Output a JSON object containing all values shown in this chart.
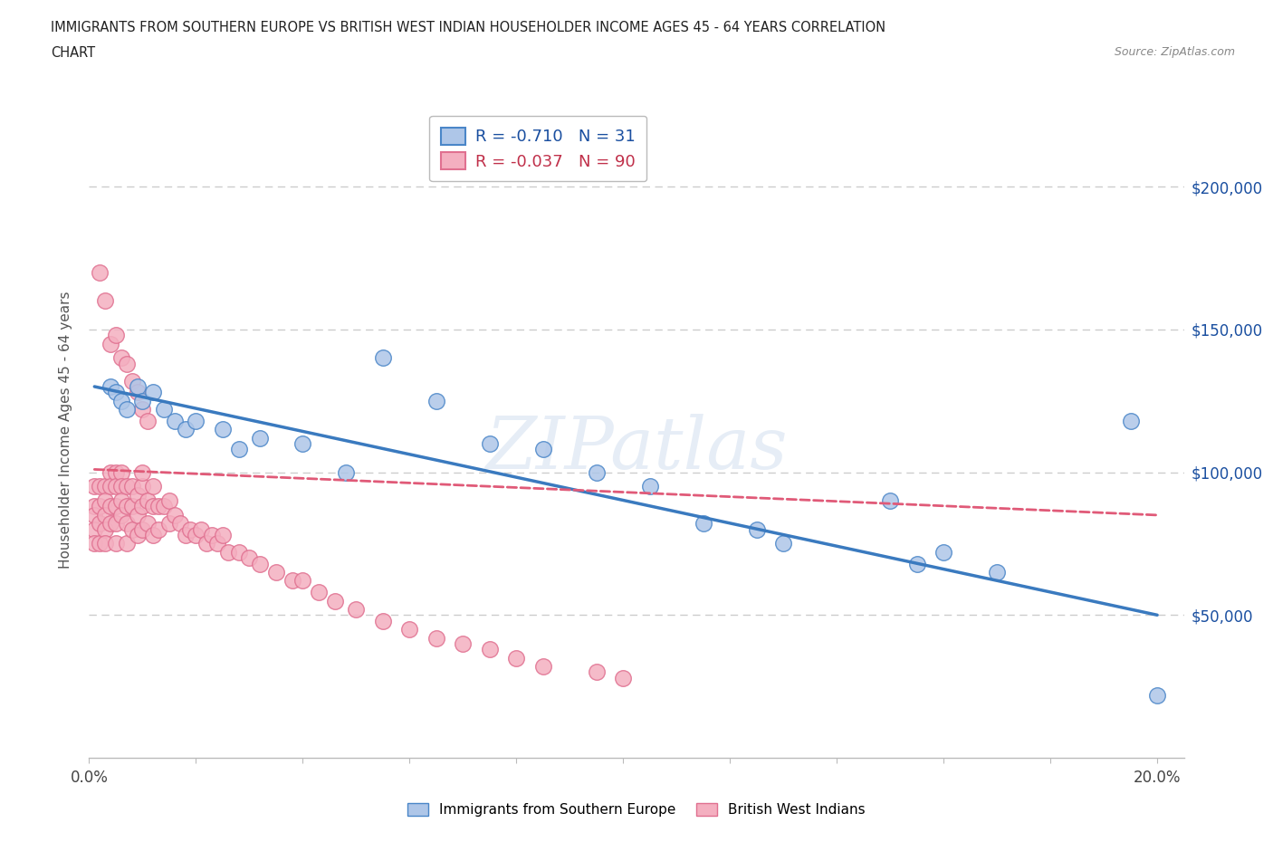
{
  "title_line1": "IMMIGRANTS FROM SOUTHERN EUROPE VS BRITISH WEST INDIAN HOUSEHOLDER INCOME AGES 45 - 64 YEARS CORRELATION",
  "title_line2": "CHART",
  "source": "Source: ZipAtlas.com",
  "ylabel": "Householder Income Ages 45 - 64 years",
  "xlim": [
    0.0,
    0.205
  ],
  "ylim": [
    0,
    230000
  ],
  "xticks": [
    0.0,
    0.02,
    0.04,
    0.06,
    0.08,
    0.1,
    0.12,
    0.14,
    0.16,
    0.18,
    0.2
  ],
  "yticks": [
    0,
    50000,
    100000,
    150000,
    200000
  ],
  "color_blue": "#aec6e8",
  "color_blue_edge": "#4a86c8",
  "color_blue_line": "#3a7abf",
  "color_pink": "#f4afc0",
  "color_pink_edge": "#e07090",
  "color_pink_line": "#e05a78",
  "color_blue_label": "#1a4fa0",
  "color_pink_label": "#c0304a",
  "R_blue": -0.71,
  "N_blue": 31,
  "R_pink": -0.037,
  "N_pink": 90,
  "legend_label_blue": "Immigrants from Southern Europe",
  "legend_label_pink": "British West Indians",
  "watermark": "ZIPatlas",
  "blue_scatter_x": [
    0.004,
    0.005,
    0.006,
    0.007,
    0.009,
    0.01,
    0.012,
    0.014,
    0.016,
    0.018,
    0.02,
    0.025,
    0.028,
    0.032,
    0.04,
    0.048,
    0.055,
    0.065,
    0.075,
    0.085,
    0.095,
    0.105,
    0.115,
    0.125,
    0.13,
    0.15,
    0.155,
    0.16,
    0.17,
    0.195,
    0.2
  ],
  "blue_scatter_y": [
    130000,
    128000,
    125000,
    122000,
    130000,
    125000,
    128000,
    122000,
    118000,
    115000,
    118000,
    115000,
    108000,
    112000,
    110000,
    100000,
    140000,
    125000,
    110000,
    108000,
    100000,
    95000,
    82000,
    80000,
    75000,
    90000,
    68000,
    72000,
    65000,
    118000,
    22000
  ],
  "pink_scatter_x": [
    0.001,
    0.001,
    0.001,
    0.001,
    0.001,
    0.002,
    0.002,
    0.002,
    0.002,
    0.003,
    0.003,
    0.003,
    0.003,
    0.003,
    0.004,
    0.004,
    0.004,
    0.004,
    0.005,
    0.005,
    0.005,
    0.005,
    0.005,
    0.006,
    0.006,
    0.006,
    0.006,
    0.007,
    0.007,
    0.007,
    0.007,
    0.008,
    0.008,
    0.008,
    0.009,
    0.009,
    0.009,
    0.01,
    0.01,
    0.01,
    0.011,
    0.011,
    0.012,
    0.012,
    0.012,
    0.013,
    0.013,
    0.014,
    0.015,
    0.015,
    0.016,
    0.017,
    0.018,
    0.019,
    0.02,
    0.021,
    0.022,
    0.023,
    0.024,
    0.025,
    0.026,
    0.028,
    0.03,
    0.032,
    0.035,
    0.038,
    0.04,
    0.043,
    0.046,
    0.05,
    0.055,
    0.06,
    0.065,
    0.07,
    0.075,
    0.08,
    0.085,
    0.095,
    0.1,
    0.01,
    0.002,
    0.003,
    0.004,
    0.005,
    0.006,
    0.007,
    0.008,
    0.009,
    0.01,
    0.011
  ],
  "pink_scatter_y": [
    95000,
    88000,
    85000,
    80000,
    75000,
    95000,
    88000,
    82000,
    75000,
    95000,
    90000,
    85000,
    80000,
    75000,
    100000,
    95000,
    88000,
    82000,
    100000,
    95000,
    88000,
    82000,
    75000,
    100000,
    95000,
    90000,
    85000,
    95000,
    88000,
    82000,
    75000,
    95000,
    88000,
    80000,
    92000,
    85000,
    78000,
    95000,
    88000,
    80000,
    90000,
    82000,
    95000,
    88000,
    78000,
    88000,
    80000,
    88000,
    90000,
    82000,
    85000,
    82000,
    78000,
    80000,
    78000,
    80000,
    75000,
    78000,
    75000,
    78000,
    72000,
    72000,
    70000,
    68000,
    65000,
    62000,
    62000,
    58000,
    55000,
    52000,
    48000,
    45000,
    42000,
    40000,
    38000,
    35000,
    32000,
    30000,
    28000,
    100000,
    170000,
    160000,
    145000,
    148000,
    140000,
    138000,
    132000,
    128000,
    122000,
    118000
  ],
  "dashed_line_color": "#cccccc",
  "blue_line_x": [
    0.001,
    0.2
  ],
  "blue_line_y": [
    130000,
    50000
  ],
  "pink_line_x": [
    0.001,
    0.2
  ],
  "pink_line_y": [
    101000,
    85000
  ]
}
